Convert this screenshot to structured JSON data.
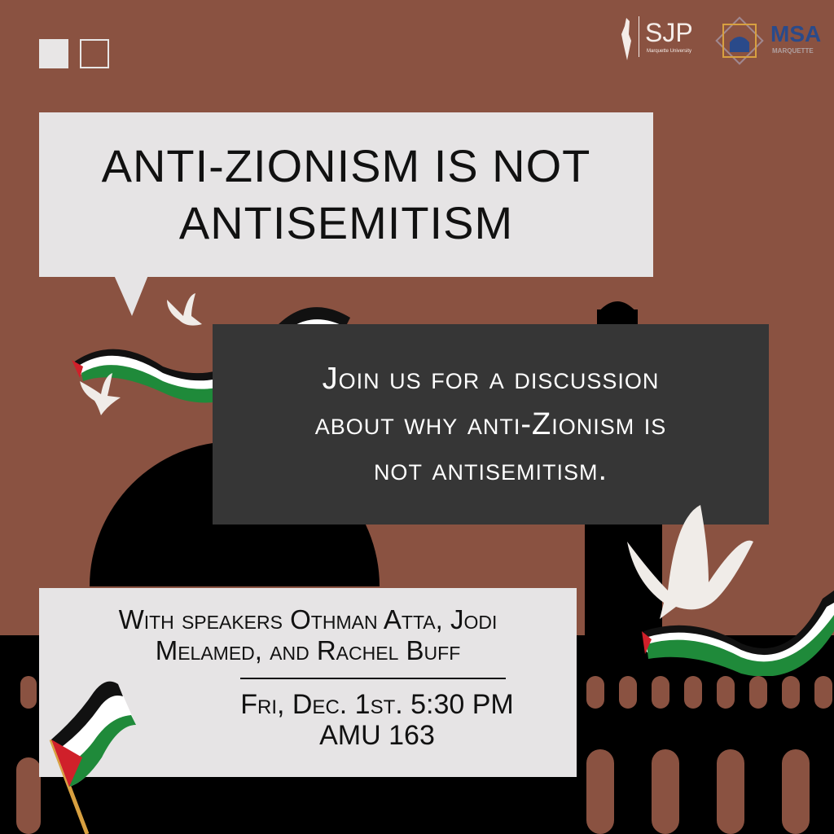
{
  "logos": {
    "sjp": {
      "name": "SJP",
      "subtitle": "Marquette University"
    },
    "msa": {
      "name": "MSA",
      "subtitle": "MARQUETTE"
    }
  },
  "headline": {
    "line1": "ANTI-ZIONISM IS NOT",
    "line2": "ANTISEMITISM"
  },
  "description": {
    "line1": "Join us for a discussion",
    "line2": "about why anti-Zionism is",
    "line3": "not antisemitism."
  },
  "event": {
    "speakers_line1": "With speakers Othman Atta, Jodi",
    "speakers_line2": "Melamed, and Rachel Buff",
    "date_time": "Fri, Dec. 1st. 5:30 PM",
    "location": "AMU 163"
  },
  "colors": {
    "background": "#8a5241",
    "panel_light": "#e6e4e5",
    "panel_dark": "#363636",
    "flag_green": "#1f8a3a",
    "flag_red": "#d0202a"
  },
  "icons": [
    "palestine-map-icon",
    "mosque-star-icon",
    "dove-icon",
    "palestinian-flag-icon",
    "flag-ribbon-icon"
  ]
}
